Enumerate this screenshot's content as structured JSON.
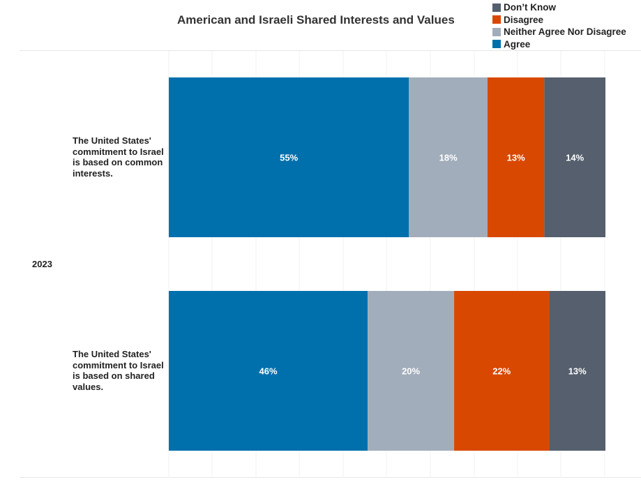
{
  "chart_data": {
    "type": "bar",
    "orientation": "horizontal",
    "stacked": true,
    "title": "American and Israeli Shared Interests and Values",
    "group": "2023",
    "categories": [
      "The United States' commitment to Israel is based on common interests.",
      "The United States' commitment to Israel is based on shared values."
    ],
    "series": [
      {
        "name": "Agree",
        "color": "#0070ad",
        "values": [
          55,
          46
        ],
        "labels": [
          "55%",
          "46%"
        ]
      },
      {
        "name": "Neither Agree Nor Disagree",
        "color": "#a2adbb",
        "values": [
          18,
          20
        ],
        "labels": [
          "18%",
          "20%"
        ]
      },
      {
        "name": "Disagree",
        "color": "#d94801",
        "values": [
          13,
          22
        ],
        "labels": [
          "13%",
          "22%"
        ]
      },
      {
        "name": "Don’t Know",
        "color": "#555f6d",
        "values": [
          14,
          13
        ],
        "labels": [
          "14%",
          "13%"
        ]
      }
    ],
    "legend_order": [
      "Don’t Know",
      "Disagree",
      "Neither Agree Nor Disagree",
      "Agree"
    ],
    "legend_position": "top-right",
    "xlim": [
      0,
      100
    ],
    "grid": true,
    "axis_labels_visible": false
  }
}
